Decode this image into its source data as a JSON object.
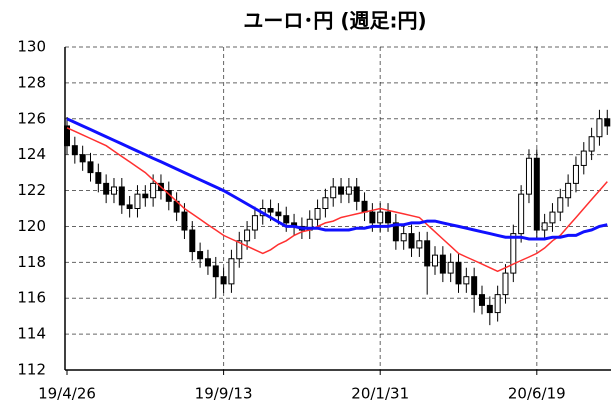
{
  "chart_data": {
    "type": "candlestick",
    "title": "ユーロ･円 (週足:円)",
    "categories": [
      "19/4/26",
      null,
      null,
      null,
      null,
      null,
      null,
      null,
      null,
      null,
      null,
      null,
      null,
      null,
      null,
      null,
      null,
      null,
      null,
      null,
      "19/9/13",
      null,
      null,
      null,
      null,
      null,
      null,
      null,
      null,
      null,
      null,
      null,
      null,
      null,
      null,
      null,
      null,
      null,
      null,
      null,
      "20/1/31",
      null,
      null,
      null,
      null,
      null,
      null,
      null,
      null,
      null,
      null,
      null,
      null,
      null,
      null,
      null,
      null,
      null,
      null,
      null,
      "20/6/19",
      null,
      null,
      null,
      null,
      null,
      null,
      null,
      null,
      null
    ],
    "open": [
      125.6,
      124.5,
      124,
      123.6,
      123,
      122.4,
      121.8,
      122.2,
      121.2,
      121,
      121.8,
      121.6,
      122.4,
      122,
      121.4,
      120.8,
      119.8,
      118.6,
      118.2,
      117.8,
      117.2,
      116.8,
      118.2,
      119.2,
      119.8,
      120.6,
      121,
      120.8,
      120.6,
      120.2,
      120,
      119.8,
      120.4,
      121,
      121.6,
      122.2,
      121.8,
      122.2,
      121.4,
      120.8,
      120.2,
      120.8,
      120.2,
      119.2,
      119.6,
      118.8,
      119.2,
      117.8,
      118.4,
      117.4,
      118,
      116.8,
      117.2,
      116.2,
      115.6,
      115.2,
      116.2,
      117.4,
      119.6,
      121.8,
      123.8,
      119.8,
      120.2,
      120.8,
      121.6,
      122.4,
      123.4,
      124.2,
      125,
      126
    ],
    "high": [
      126.1,
      125,
      124.5,
      124.1,
      123.5,
      122.9,
      122.7,
      122.7,
      121.7,
      122.3,
      122.3,
      122.9,
      122.9,
      122.5,
      121.9,
      121.3,
      120.3,
      119.1,
      118.7,
      118.3,
      117.7,
      118.7,
      119.7,
      120.3,
      121.1,
      121.5,
      121.5,
      121.3,
      121.1,
      120.7,
      120.5,
      120.9,
      121.5,
      122.1,
      122.7,
      122.7,
      122.7,
      122.7,
      121.9,
      121.3,
      121.3,
      121.3,
      120.7,
      120.1,
      120.1,
      119.7,
      119.7,
      118.9,
      118.9,
      118.5,
      118.5,
      117.7,
      117.7,
      116.7,
      116.1,
      116.7,
      117.9,
      120.1,
      122.3,
      124.3,
      124.3,
      120.7,
      121.3,
      122.1,
      122.9,
      123.9,
      124.7,
      125.5,
      126.5,
      126.5
    ],
    "low": [
      124,
      123.5,
      123.1,
      122.5,
      121.9,
      121.3,
      121.3,
      120.7,
      120.5,
      120.5,
      121.1,
      121.1,
      121.5,
      120.9,
      120.3,
      119.3,
      118.1,
      117.7,
      117.3,
      116,
      116.3,
      116.3,
      117.7,
      118.7,
      119.3,
      120.1,
      120.3,
      120.1,
      119.7,
      119.5,
      119.3,
      119.3,
      119.9,
      120.5,
      121.1,
      121.3,
      121.3,
      120.9,
      120.3,
      119.7,
      119.7,
      119.7,
      118.7,
      118.7,
      118.3,
      118.3,
      116.2,
      117.3,
      116.9,
      116.9,
      116.3,
      116.3,
      115.2,
      115.1,
      114.5,
      114.7,
      115.7,
      116.9,
      119.1,
      121.3,
      119.3,
      119.3,
      119.7,
      120.3,
      121.1,
      121.9,
      122.9,
      123.7,
      124.5,
      125.1
    ],
    "close": [
      124.5,
      124,
      123.6,
      123,
      122.4,
      121.8,
      122.2,
      121.2,
      121,
      121.8,
      121.6,
      122.4,
      122,
      121.4,
      120.8,
      119.8,
      118.6,
      118.2,
      117.8,
      117.2,
      116.8,
      118.2,
      119.2,
      119.8,
      120.6,
      121,
      120.8,
      120.6,
      120.2,
      120,
      119.8,
      120.4,
      121,
      121.6,
      122.2,
      121.8,
      122.2,
      121.4,
      120.8,
      120.2,
      120.8,
      120.2,
      119.2,
      119.6,
      118.8,
      119.2,
      117.8,
      118.4,
      117.4,
      118,
      116.8,
      117.2,
      116.2,
      115.6,
      115.2,
      116.2,
      117.4,
      119.6,
      121.8,
      123.8,
      119.8,
      120.2,
      120.8,
      121.6,
      122.4,
      123.4,
      124.2,
      125,
      126,
      125.6
    ],
    "up_color": "#ffffff",
    "down_color": "#000000",
    "moving_averages": [
      {
        "color": "#ff3030",
        "values": [
          125.5,
          125.3,
          125.1,
          124.9,
          124.7,
          124.5,
          124.2,
          123.9,
          123.6,
          123.3,
          123,
          122.6,
          122.2,
          121.8,
          121.4,
          121,
          120.7,
          120.4,
          120.1,
          119.8,
          119.5,
          119.3,
          119.1,
          118.9,
          118.7,
          118.5,
          118.7,
          119,
          119.2,
          119.5,
          119.7,
          119.8,
          120,
          120.2,
          120.3,
          120.5,
          120.6,
          120.7,
          120.8,
          120.9,
          121,
          120.9,
          120.8,
          120.7,
          120.6,
          120.5,
          120.1,
          119.7,
          119.3,
          118.9,
          118.5,
          118.3,
          118.1,
          117.9,
          117.7,
          117.5,
          117.7,
          117.9,
          118.1,
          118.3,
          118.5,
          118.8,
          119.2,
          119.5,
          120,
          120.5,
          121,
          121.5,
          122,
          122.5
        ]
      },
      {
        "color": "#1010ff",
        "values": [
          126,
          125.8,
          125.6,
          125.4,
          125.2,
          125,
          124.8,
          124.6,
          124.4,
          124.2,
          124,
          123.8,
          123.6,
          123.4,
          123.2,
          123,
          122.8,
          122.6,
          122.4,
          122.2,
          122,
          121.75,
          121.5,
          121.25,
          121,
          120.75,
          120.5,
          120.25,
          120,
          120,
          119.9,
          119.9,
          119.9,
          119.8,
          119.8,
          119.8,
          119.8,
          119.9,
          119.9,
          120,
          120,
          120,
          120.1,
          120.1,
          120.2,
          120.2,
          120.3,
          120.3,
          120.2,
          120.1,
          120,
          119.9,
          119.8,
          119.7,
          119.6,
          119.5,
          119.4,
          119.4,
          119.4,
          119.3,
          119.3,
          119.3,
          119.4,
          119.4,
          119.5,
          119.5,
          119.7,
          119.8,
          120,
          120.1
        ]
      }
    ],
    "ylim": [
      112,
      130
    ],
    "yticks": [
      112,
      114,
      116,
      118,
      120,
      122,
      124,
      126,
      128,
      130
    ],
    "grid": true
  }
}
